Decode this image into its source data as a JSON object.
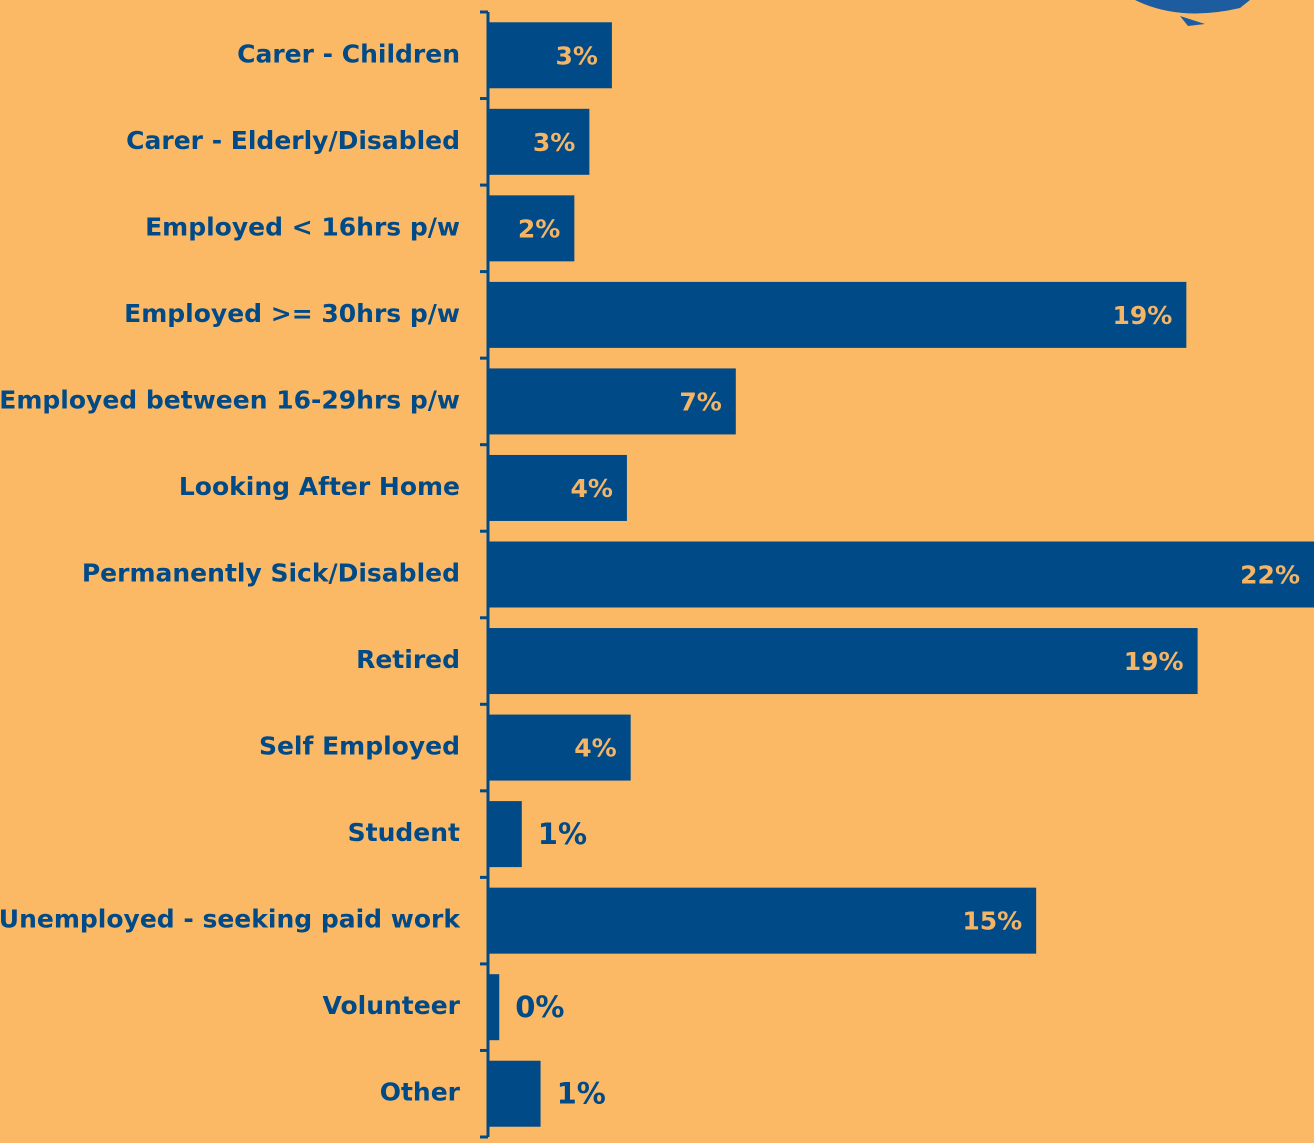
{
  "chart_data": {
    "type": "bar",
    "orientation": "horizontal",
    "categories": [
      "Carer - Children",
      "Carer - Elderly/Disabled",
      "Employed < 16hrs p/w",
      "Employed >= 30hrs p/w",
      "Employed between 16-29hrs p/w",
      "Looking After Home",
      "Permanently Sick/Disabled",
      "Retired",
      "Self Employed",
      "Student",
      "Unemployed - seeking paid work",
      "Volunteer",
      "Other"
    ],
    "values": [
      3.3,
      2.7,
      2.3,
      18.6,
      6.6,
      3.7,
      22,
      18.9,
      3.8,
      0.9,
      14.6,
      0.3,
      1.4
    ],
    "value_labels": [
      "3%",
      "3%",
      "2%",
      "19%",
      "7%",
      "4%",
      "22%",
      "19%",
      "4%",
      "1%",
      "15%",
      "0%",
      "1%"
    ],
    "color": "#004a88",
    "xlim": [
      0,
      22
    ]
  }
}
